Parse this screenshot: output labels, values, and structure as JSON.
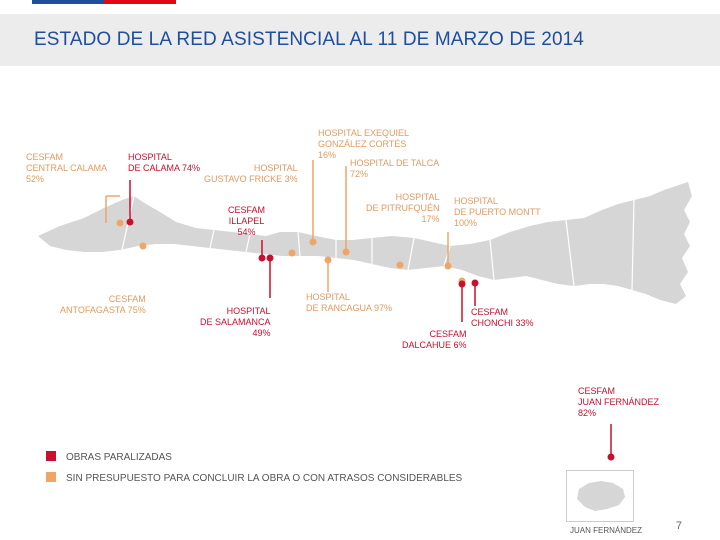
{
  "header": {
    "title": "ESTADO DE LA RED ASISTENCIAL AL 11 DE MARZO DE 2014",
    "colors": {
      "blue": "#1f4e9c",
      "red": "#e30613",
      "band": "#ececec"
    }
  },
  "colors": {
    "paralyzed": "#c8102e",
    "delayed": "#f0a566",
    "landmass": "#d6d6d6"
  },
  "facilities": [
    {
      "id": "cesfam-central-calama",
      "name": "CESFAM\nCENTRAL CALAMA\n52%",
      "status": "delayed"
    },
    {
      "id": "hospital-calama",
      "name": "HOSPITAL\nDE CALAMA 74%",
      "status": "paralyzed"
    },
    {
      "id": "hospital-gustavo-fricke",
      "name": "HOSPITAL\nGUSTAVO FRICKE 3%",
      "status": "delayed"
    },
    {
      "id": "cesfam-illapel",
      "name": "CESFAM\nILLAPEL\n54%",
      "status": "paralyzed"
    },
    {
      "id": "hospital-exequiel",
      "name": "HOSPITAL EXEQUIEL\nGONZÁLEZ CORTÉS\n16%",
      "status": "delayed"
    },
    {
      "id": "hospital-talca",
      "name": "HOSPITAL DE TALCA\n72%",
      "status": "delayed"
    },
    {
      "id": "hospital-pitrufquen",
      "name": "HOSPITAL\nDE PITRUFQUÉN\n17%",
      "status": "delayed"
    },
    {
      "id": "hospital-puerto-montt",
      "name": "HOSPITAL\nDE PUERTO MONTT\n100%",
      "status": "delayed"
    },
    {
      "id": "cesfam-antofagasta",
      "name": "CESFAM\nANTOFAGASTA 75%",
      "status": "delayed"
    },
    {
      "id": "hospital-salamanca",
      "name": "HOSPITAL\nDE SALAMANCA\n49%",
      "status": "paralyzed"
    },
    {
      "id": "hospital-rancagua",
      "name": "HOSPITAL\nDE RANCAGUA 97%",
      "status": "delayed"
    },
    {
      "id": "cesfam-dalcahue",
      "name": "CESFAM\nDALCAHUE 6%",
      "status": "paralyzed"
    },
    {
      "id": "cesfam-chonchi",
      "name": "CESFAM\nCHONCHI 33%",
      "status": "paralyzed"
    },
    {
      "id": "cesfam-juan-fernandez",
      "name": "CESFAM\nJUAN FERNÁNDEZ\n82%",
      "status": "paralyzed"
    }
  ],
  "legend": {
    "paralyzed": "OBRAS PARALIZADAS",
    "delayed": "SIN PRESUPUESTO PARA CONCLUIR LA OBRA O CON ATRASOS CONSIDERABLES"
  },
  "island": {
    "caption": "JUAN FERNÁNDEZ"
  },
  "page_number": "7"
}
